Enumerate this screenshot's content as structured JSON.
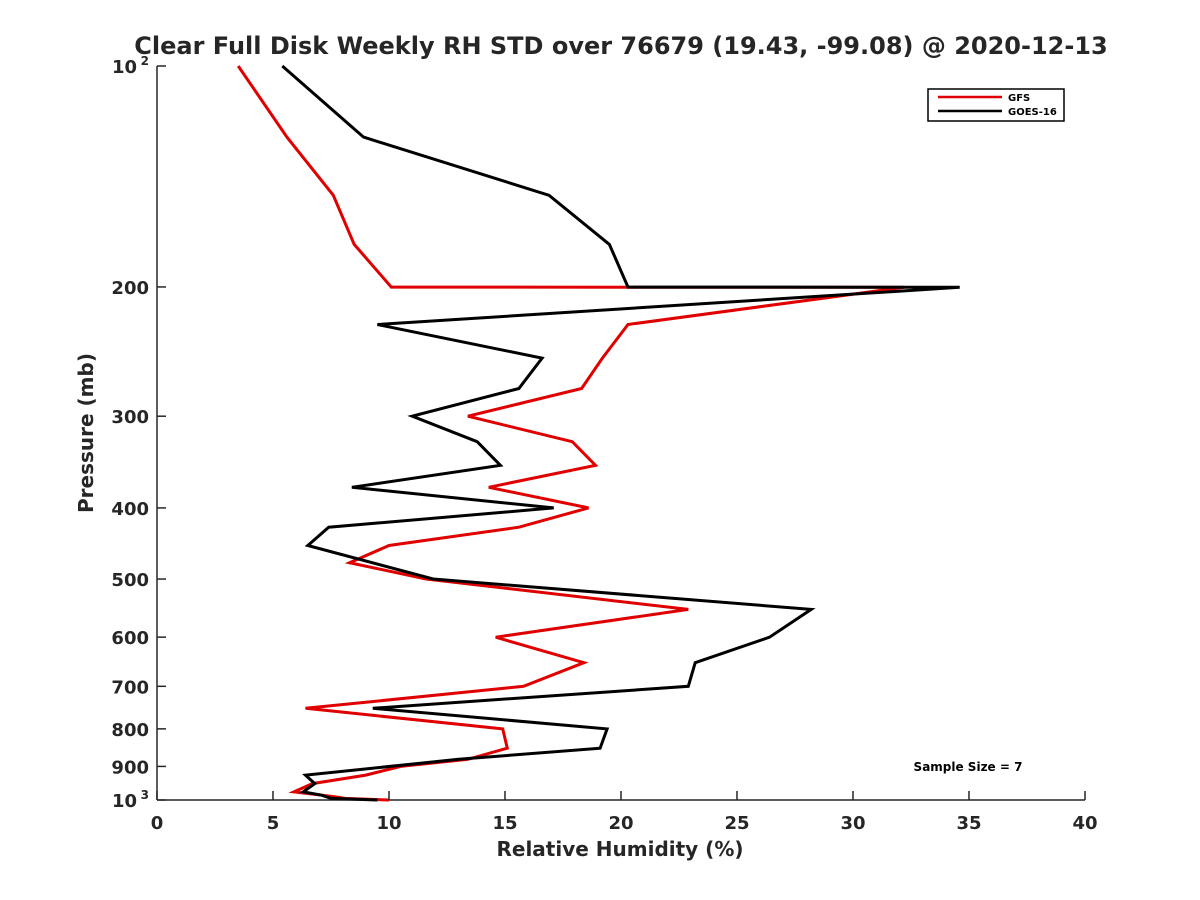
{
  "chart_data": {
    "type": "line",
    "title": "Clear Full Disk Weekly RH STD over 76679 (19.43, -99.08) @ 2020-12-13",
    "xlabel": "Relative Humidity (%)",
    "ylabel": "Pressure (mb)",
    "xlim": [
      0,
      40
    ],
    "ylim": [
      100,
      1000
    ],
    "y_scale": "log",
    "y_reversed": true,
    "x_ticks": [
      "0",
      "5",
      "10",
      "15",
      "20",
      "25",
      "30",
      "35",
      "40"
    ],
    "y_ticks": [
      {
        "value": 100,
        "label": "10",
        "sup": "2"
      },
      {
        "value": 200,
        "label": "200",
        "sup": ""
      },
      {
        "value": 300,
        "label": "300",
        "sup": ""
      },
      {
        "value": 400,
        "label": "400",
        "sup": ""
      },
      {
        "value": 500,
        "label": "500",
        "sup": ""
      },
      {
        "value": 600,
        "label": "600",
        "sup": ""
      },
      {
        "value": 700,
        "label": "700",
        "sup": ""
      },
      {
        "value": 800,
        "label": "800",
        "sup": ""
      },
      {
        "value": 900,
        "label": "900",
        "sup": ""
      },
      {
        "value": 1000,
        "label": "10",
        "sup": "3"
      }
    ],
    "grid": false,
    "legend_position": "top-right",
    "annotation": "Sample Size = 7",
    "series": [
      {
        "name": "GFS",
        "color": "#e00000",
        "points": [
          [
            3.5,
            100
          ],
          [
            5.6,
            125
          ],
          [
            7.6,
            150
          ],
          [
            8.5,
            175
          ],
          [
            10.1,
            200.1
          ],
          [
            32.2,
            200.2
          ],
          [
            20.3,
            225
          ],
          [
            19.2,
            250
          ],
          [
            18.3,
            275
          ],
          [
            13.4,
            300
          ],
          [
            17.9,
            325
          ],
          [
            18.9,
            350
          ],
          [
            14.3,
            375
          ],
          [
            18.6,
            400
          ],
          [
            15.6,
            425
          ],
          [
            10.0,
            450
          ],
          [
            8.3,
            475
          ],
          [
            11.6,
            500
          ],
          [
            22.9,
            550
          ],
          [
            14.6,
            600
          ],
          [
            18.4,
            650
          ],
          [
            15.8,
            700
          ],
          [
            6.4,
            750
          ],
          [
            14.9,
            800
          ],
          [
            15.1,
            850
          ],
          [
            13.4,
            880
          ],
          [
            10.5,
            900
          ],
          [
            9.0,
            925
          ],
          [
            6.7,
            950
          ],
          [
            5.9,
            975
          ],
          [
            7.7,
            990
          ],
          [
            8.1,
            995
          ],
          [
            10.0,
            1000
          ]
        ]
      },
      {
        "name": "GOES-16",
        "color": "#000000",
        "points": [
          [
            5.4,
            100
          ],
          [
            8.9,
            125
          ],
          [
            16.9,
            150
          ],
          [
            19.5,
            175
          ],
          [
            20.3,
            200.1
          ],
          [
            34.6,
            200.2
          ],
          [
            9.5,
            225
          ],
          [
            16.6,
            250
          ],
          [
            15.6,
            275
          ],
          [
            11.0,
            300
          ],
          [
            13.8,
            325
          ],
          [
            14.8,
            350
          ],
          [
            8.4,
            375
          ],
          [
            17.1,
            400
          ],
          [
            7.4,
            425
          ],
          [
            6.5,
            450
          ],
          [
            11.9,
            500
          ],
          [
            28.2,
            550
          ],
          [
            26.4,
            600
          ],
          [
            23.2,
            650
          ],
          [
            22.9,
            700
          ],
          [
            9.3,
            750
          ],
          [
            19.4,
            800
          ],
          [
            19.1,
            850
          ],
          [
            13.0,
            880
          ],
          [
            6.4,
            925
          ],
          [
            6.8,
            950
          ],
          [
            6.3,
            975
          ],
          [
            7.1,
            985
          ],
          [
            7.5,
            995
          ],
          [
            9.5,
            1000
          ]
        ]
      }
    ]
  }
}
